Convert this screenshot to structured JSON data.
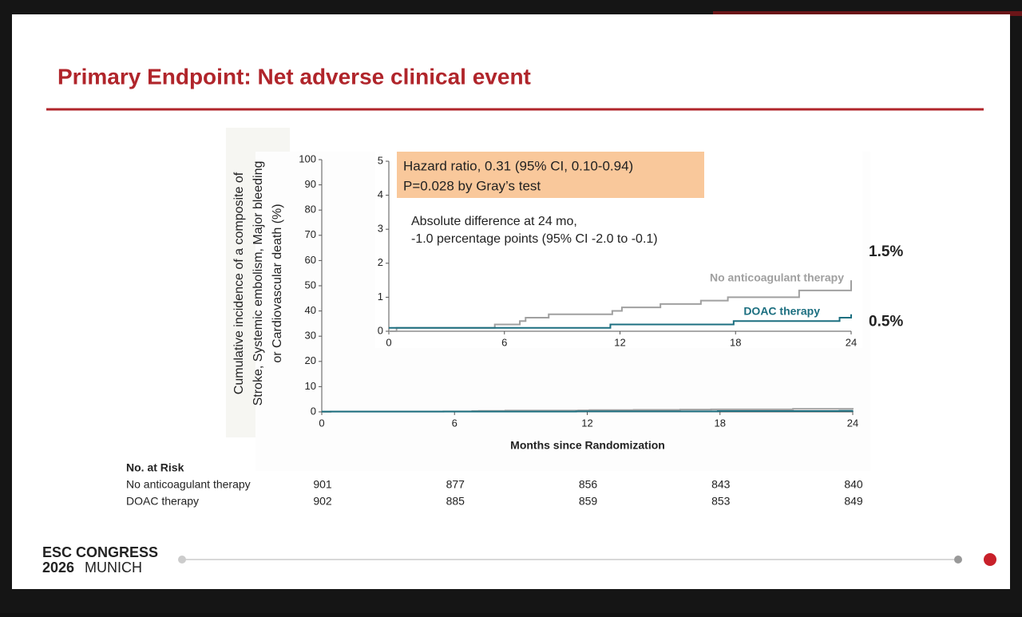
{
  "slide": {
    "title": "Primary Endpoint: Net adverse clinical event",
    "footer_line1": "ESC CONGRESS",
    "footer_year": "2026",
    "footer_city": "MUNICH"
  },
  "chart_data": [
    {
      "type": "line",
      "step": true,
      "ylabel_lines": [
        "Cumulative incidence of  a composite of",
        "Stroke, Systemic embolism, Major bleeding",
        "or Cardiovascular death (%)"
      ],
      "xlabel": "Months since Randomization",
      "xlim": [
        0,
        24
      ],
      "xticks": [
        0,
        6,
        12,
        18,
        24
      ],
      "ylim": [
        0,
        100
      ],
      "yticks": [
        0,
        10,
        20,
        30,
        40,
        50,
        60,
        70,
        80,
        90,
        100
      ],
      "series": [
        {
          "color": "#a0a0a0",
          "x": [
            0,
            0.4,
            5.5,
            6.8,
            7.1,
            8.3,
            11.6,
            12.1,
            14.1,
            16.2,
            17.6,
            21.3,
            24
          ],
          "values": [
            0,
            0.1,
            0.2,
            0.3,
            0.4,
            0.5,
            0.6,
            0.7,
            0.8,
            0.9,
            1.0,
            1.2,
            1.5
          ]
        },
        {
          "color": "#1c6f80",
          "x": [
            0,
            11.5,
            17.9,
            23.4,
            24
          ],
          "values": [
            0.1,
            0.2,
            0.3,
            0.4,
            0.5
          ]
        }
      ]
    },
    {
      "type": "line",
      "step": true,
      "xlim": [
        0,
        24
      ],
      "xticks": [
        0,
        6,
        12,
        18,
        24
      ],
      "ylim": [
        0,
        5
      ],
      "yticks": [
        0,
        1,
        2,
        3,
        4,
        5
      ],
      "box_lines": [
        "Hazard ratio, 0.31 (95% CI, 0.10-0.94)",
        "P=0.028 by Gray’s test"
      ],
      "annotation_lines": [
        "Absolute difference at 24 mo,",
        "-1.0 percentage points (95% CI -2.0 to -0.1)"
      ],
      "series": [
        {
          "name": "No anticoagulant therapy",
          "color": "#a0a0a0",
          "x": [
            0,
            0.4,
            5.5,
            6.8,
            7.1,
            8.3,
            11.6,
            12.1,
            14.1,
            16.2,
            17.6,
            21.3,
            24
          ],
          "values": [
            0,
            0.1,
            0.2,
            0.3,
            0.4,
            0.5,
            0.6,
            0.7,
            0.8,
            0.9,
            1.0,
            1.2,
            1.5
          ],
          "value_labels": [
            null,
            null,
            null,
            null,
            null,
            null,
            null,
            null,
            null,
            null,
            null,
            null,
            "1.5%"
          ]
        },
        {
          "name": "DOAC therapy",
          "color": "#1c6f80",
          "x": [
            0,
            11.5,
            17.9,
            23.4,
            24
          ],
          "values": [
            0.1,
            0.2,
            0.3,
            0.4,
            0.5
          ],
          "value_labels": [
            null,
            null,
            null,
            null,
            "0.5%"
          ]
        }
      ]
    }
  ],
  "risk_table": {
    "header": "No. at Risk",
    "rows": [
      {
        "name": "No anticoagulant therapy",
        "values": [
          901,
          877,
          856,
          843,
          840
        ]
      },
      {
        "name": "DOAC therapy",
        "values": [
          902,
          885,
          859,
          853,
          849
        ]
      }
    ]
  }
}
